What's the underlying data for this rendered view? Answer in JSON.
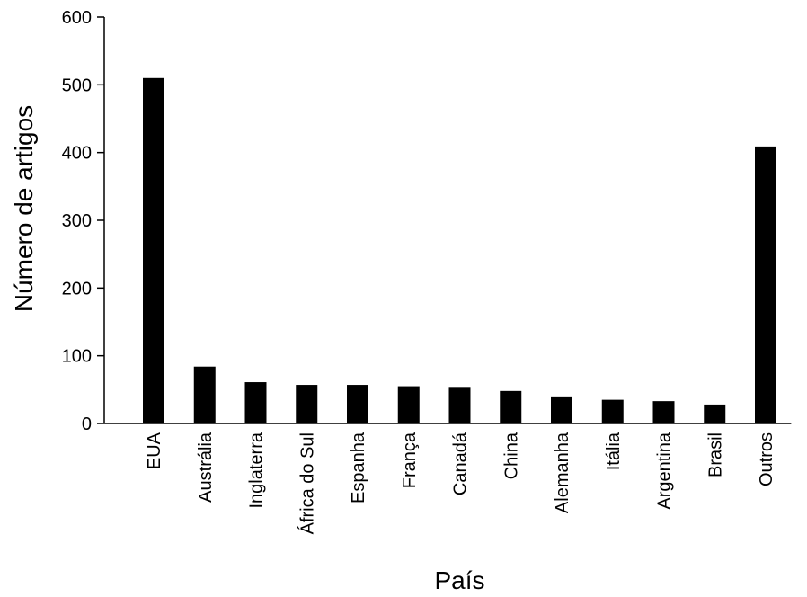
{
  "chart_data": {
    "type": "bar",
    "title": "",
    "xlabel": "País",
    "ylabel": "Número de artigos",
    "categories": [
      "EUA",
      "Austrália",
      "Inglaterra",
      "África do Sul",
      "Espanha",
      "França",
      "Canadá",
      "China",
      "Alemanha",
      "Itália",
      "Argentina",
      "Brasil",
      "Outros"
    ],
    "values": [
      510,
      84,
      61,
      57,
      57,
      55,
      54,
      48,
      40,
      35,
      33,
      28,
      409
    ],
    "ylim": [
      0,
      600
    ],
    "yticks": [
      0,
      100,
      200,
      300,
      400,
      500,
      600
    ],
    "grid": false,
    "bar_color": "#000000"
  }
}
